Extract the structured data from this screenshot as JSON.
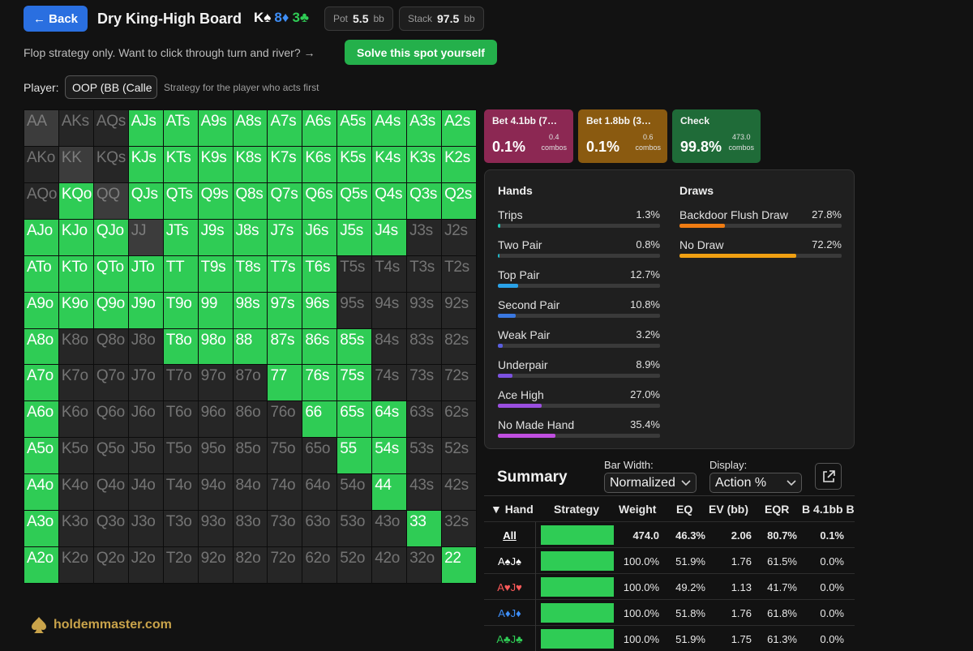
{
  "header": {
    "back_label": "← Back",
    "board_title": "Dry King-High Board",
    "board_cards": [
      {
        "text": "K♠",
        "color": "#ffffff"
      },
      {
        "text": "8♦",
        "color": "#3e8ef7"
      },
      {
        "text": "3♣",
        "color": "#2fcc55"
      }
    ],
    "pot_label": "Pot",
    "pot_value": "5.5",
    "pot_unit": "bb",
    "stack_label": "Stack",
    "stack_value": "97.5",
    "stack_unit": "bb"
  },
  "hint": {
    "text": "Flop strategy only. Want to click through turn and river? →",
    "solve_label": "Solve this spot yourself"
  },
  "player": {
    "label": "Player:",
    "selected": "OOP (BB (Calle",
    "note": "Strategy for the player who acts first"
  },
  "grid": {
    "rows": [
      [
        "AA",
        "AKs",
        "AQs",
        "AJs",
        "ATs",
        "A9s",
        "A8s",
        "A7s",
        "A6s",
        "A5s",
        "A4s",
        "A3s",
        "A2s"
      ],
      [
        "AKo",
        "KK",
        "KQs",
        "KJs",
        "KTs",
        "K9s",
        "K8s",
        "K7s",
        "K6s",
        "K5s",
        "K4s",
        "K3s",
        "K2s"
      ],
      [
        "AQo",
        "KQo",
        "QQ",
        "QJs",
        "QTs",
        "Q9s",
        "Q8s",
        "Q7s",
        "Q6s",
        "Q5s",
        "Q4s",
        "Q3s",
        "Q2s"
      ],
      [
        "AJo",
        "KJo",
        "QJo",
        "JJ",
        "JTs",
        "J9s",
        "J8s",
        "J7s",
        "J6s",
        "J5s",
        "J4s",
        "J3s",
        "J2s"
      ],
      [
        "ATo",
        "KTo",
        "QTo",
        "JTo",
        "TT",
        "T9s",
        "T8s",
        "T7s",
        "T6s",
        "T5s",
        "T4s",
        "T3s",
        "T2s"
      ],
      [
        "A9o",
        "K9o",
        "Q9o",
        "J9o",
        "T9o",
        "99",
        "98s",
        "97s",
        "96s",
        "95s",
        "94s",
        "93s",
        "92s"
      ],
      [
        "A8o",
        "K8o",
        "Q8o",
        "J8o",
        "T8o",
        "98o",
        "88",
        "87s",
        "86s",
        "85s",
        "84s",
        "83s",
        "82s"
      ],
      [
        "A7o",
        "K7o",
        "Q7o",
        "J7o",
        "T7o",
        "97o",
        "87o",
        "77",
        "76s",
        "75s",
        "74s",
        "73s",
        "72s"
      ],
      [
        "A6o",
        "K6o",
        "Q6o",
        "J6o",
        "T6o",
        "96o",
        "86o",
        "76o",
        "66",
        "65s",
        "64s",
        "63s",
        "62s"
      ],
      [
        "A5o",
        "K5o",
        "Q5o",
        "J5o",
        "T5o",
        "95o",
        "85o",
        "75o",
        "65o",
        "55",
        "54s",
        "53s",
        "52s"
      ],
      [
        "A4o",
        "K4o",
        "Q4o",
        "J4o",
        "T4o",
        "94o",
        "84o",
        "74o",
        "64o",
        "54o",
        "44",
        "43s",
        "42s"
      ],
      [
        "A3o",
        "K3o",
        "Q3o",
        "J3o",
        "T3o",
        "93o",
        "83o",
        "73o",
        "63o",
        "53o",
        "43o",
        "33",
        "32s"
      ],
      [
        "A2o",
        "K2o",
        "Q2o",
        "J2o",
        "T2o",
        "92o",
        "82o",
        "72o",
        "62o",
        "52o",
        "42o",
        "32o",
        "22"
      ]
    ],
    "in_range": [
      [
        0,
        0,
        0,
        1,
        1,
        1,
        1,
        1,
        1,
        1,
        1,
        1,
        1
      ],
      [
        0,
        0,
        0,
        1,
        1,
        1,
        1,
        1,
        1,
        1,
        1,
        1,
        1
      ],
      [
        0,
        1,
        0,
        1,
        1,
        1,
        1,
        1,
        1,
        1,
        1,
        1,
        1
      ],
      [
        1,
        1,
        1,
        0,
        1,
        1,
        1,
        1,
        1,
        1,
        1,
        0,
        0
      ],
      [
        1,
        1,
        1,
        1,
        1,
        1,
        1,
        1,
        1,
        0,
        0,
        0,
        0
      ],
      [
        1,
        1,
        1,
        1,
        1,
        1,
        1,
        1,
        1,
        0,
        0,
        0,
        0
      ],
      [
        1,
        0,
        0,
        0,
        1,
        1,
        1,
        1,
        1,
        1,
        0,
        0,
        0
      ],
      [
        1,
        0,
        0,
        0,
        0,
        0,
        0,
        1,
        1,
        1,
        0,
        0,
        0
      ],
      [
        1,
        0,
        0,
        0,
        0,
        0,
        0,
        0,
        1,
        1,
        1,
        0,
        0
      ],
      [
        1,
        0,
        0,
        0,
        0,
        0,
        0,
        0,
        0,
        1,
        1,
        0,
        0
      ],
      [
        1,
        0,
        0,
        0,
        0,
        0,
        0,
        0,
        0,
        0,
        1,
        0,
        0
      ],
      [
        1,
        0,
        0,
        0,
        0,
        0,
        0,
        0,
        0,
        0,
        0,
        1,
        0
      ],
      [
        1,
        0,
        0,
        0,
        0,
        0,
        0,
        0,
        0,
        0,
        0,
        0,
        1
      ]
    ]
  },
  "brand": "holdemmaster.com",
  "actions": [
    {
      "label": "Bet 4.1bb (7…",
      "pct": "0.1%",
      "combos": "0.4",
      "combos_label": "combos",
      "color": "#8c2853"
    },
    {
      "label": "Bet 1.8bb (3…",
      "pct": "0.1%",
      "combos": "0.6",
      "combos_label": "combos",
      "color": "#8a5a10"
    },
    {
      "label": "Check",
      "pct": "99.8%",
      "combos": "473.0",
      "combos_label": "combos",
      "color": "#1f6b38"
    }
  ],
  "breakdown": {
    "hands_title": "Hands",
    "draws_title": "Draws",
    "hands": [
      {
        "label": "Trips",
        "value": "1.3%",
        "frac": 0.013,
        "color": "#1fc7b5"
      },
      {
        "label": "Two Pair",
        "value": "0.8%",
        "frac": 0.008,
        "color": "#1fb7c7"
      },
      {
        "label": "Top Pair",
        "value": "12.7%",
        "frac": 0.127,
        "color": "#2aa2e8"
      },
      {
        "label": "Second Pair",
        "value": "10.8%",
        "frac": 0.108,
        "color": "#3a78e0"
      },
      {
        "label": "Weak Pair",
        "value": "3.2%",
        "frac": 0.032,
        "color": "#5a5ee0"
      },
      {
        "label": "Underpair",
        "value": "8.9%",
        "frac": 0.089,
        "color": "#7c52e0"
      },
      {
        "label": "Ace High",
        "value": "27.0%",
        "frac": 0.27,
        "color": "#9b4fe0"
      },
      {
        "label": "No Made Hand",
        "value": "35.4%",
        "frac": 0.354,
        "color": "#c04fe0"
      }
    ],
    "draws": [
      {
        "label": "Backdoor Flush Draw",
        "value": "27.8%",
        "frac": 0.278,
        "color": "#f07c12"
      },
      {
        "label": "No Draw",
        "value": "72.2%",
        "frac": 0.722,
        "color": "#f0a012"
      }
    ]
  },
  "summary": {
    "title": "Summary",
    "bar_width_label": "Bar Width:",
    "bar_width_value": "Normalized",
    "display_label": "Display:",
    "display_value": "Action %",
    "columns": [
      "▼ Hand",
      "Strategy",
      "Weight",
      "EQ",
      "EV (bb)",
      "EQR",
      "B 4.1bb B"
    ],
    "rows": [
      {
        "hand": "All",
        "hand_color": "#ffffff",
        "strategy": 1.0,
        "weight": "474.0",
        "eq": "46.3%",
        "ev": "2.06",
        "eqr": "80.7%",
        "b41": "0.1%",
        "bold": true
      },
      {
        "hand": "A♠J♠",
        "hand_color": "#ffffff",
        "strategy": 1.0,
        "weight": "100.0%",
        "eq": "51.9%",
        "ev": "1.76",
        "eqr": "61.5%",
        "b41": "0.0%",
        "bold": false
      },
      {
        "hand": "A♥J♥",
        "hand_color": "#ff5a5a",
        "strategy": 1.0,
        "weight": "100.0%",
        "eq": "49.2%",
        "ev": "1.13",
        "eqr": "41.7%",
        "b41": "0.0%",
        "bold": false
      },
      {
        "hand": "A♦J♦",
        "hand_color": "#3e8ef7",
        "strategy": 1.0,
        "weight": "100.0%",
        "eq": "51.8%",
        "ev": "1.76",
        "eqr": "61.8%",
        "b41": "0.0%",
        "bold": false
      },
      {
        "hand": "A♣J♣",
        "hand_color": "#2fcc55",
        "strategy": 1.0,
        "weight": "100.0%",
        "eq": "51.9%",
        "ev": "1.75",
        "eqr": "61.3%",
        "b41": "0.0%",
        "bold": false
      }
    ]
  }
}
